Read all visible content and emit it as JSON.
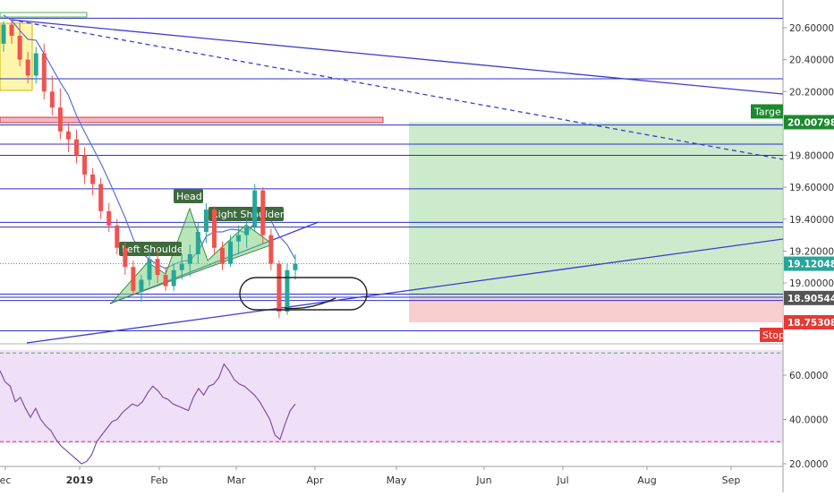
{
  "chart_data": [
    {
      "type": "candlestick",
      "title": "",
      "x_ticks": [
        "ec",
        "2019",
        "Feb",
        "Mar",
        "Apr",
        "May",
        "Jun",
        "Jul",
        "Aug",
        "Sep"
      ],
      "y_ticks": [
        "20.60000",
        "20.40000",
        "20.20000",
        "19.80000",
        "19.60000",
        "19.40000",
        "19.20000",
        "19.00000"
      ],
      "ylim": [
        18.6,
        20.7
      ],
      "grid": false,
      "price_tags": [
        {
          "value": 20.00798,
          "label": "20.00798",
          "color": "#1b8a2e"
        },
        {
          "value": 19.12048,
          "label": "19.12048",
          "color": "#26a69a"
        },
        {
          "value": 18.90544,
          "label": "18.90544",
          "color": "#555555"
        },
        {
          "value": 18.75308,
          "label": "18.75308",
          "color": "#e53935"
        }
      ],
      "position_labels": {
        "target": "Targe",
        "stop": "Stop"
      },
      "pattern_labels": {
        "left_shoulder": "Left Shoulde",
        "head": "Head",
        "right_shoulder": "Right Shoulder"
      },
      "horizontal_levels": [
        20.66,
        20.28,
        19.99,
        19.87,
        19.8,
        19.59,
        19.38,
        19.35,
        18.93,
        18.91,
        18.89,
        18.7
      ],
      "position": {
        "entry": 18.905,
        "target": 20.008,
        "stop": 18.753
      },
      "candles": [
        {
          "o": 20.5,
          "h": 20.64,
          "l": 20.45,
          "c": 20.62
        },
        {
          "o": 20.62,
          "h": 20.66,
          "l": 20.5,
          "c": 20.55
        },
        {
          "o": 20.55,
          "h": 20.63,
          "l": 20.36,
          "c": 20.4
        },
        {
          "o": 20.4,
          "h": 20.45,
          "l": 20.25,
          "c": 20.3
        },
        {
          "o": 20.3,
          "h": 20.48,
          "l": 20.25,
          "c": 20.44
        },
        {
          "o": 20.44,
          "h": 20.5,
          "l": 20.15,
          "c": 20.2
        },
        {
          "o": 20.2,
          "h": 20.3,
          "l": 20.05,
          "c": 20.1
        },
        {
          "o": 20.1,
          "h": 20.22,
          "l": 19.9,
          "c": 19.95
        },
        {
          "o": 19.95,
          "h": 20.0,
          "l": 19.82,
          "c": 19.9
        },
        {
          "o": 19.9,
          "h": 19.96,
          "l": 19.75,
          "c": 19.8
        },
        {
          "o": 19.8,
          "h": 19.85,
          "l": 19.62,
          "c": 19.68
        },
        {
          "o": 19.68,
          "h": 19.72,
          "l": 19.55,
          "c": 19.62
        },
        {
          "o": 19.62,
          "h": 19.66,
          "l": 19.4,
          "c": 19.45
        },
        {
          "o": 19.45,
          "h": 19.5,
          "l": 19.32,
          "c": 19.36
        },
        {
          "o": 19.36,
          "h": 19.4,
          "l": 19.18,
          "c": 19.22
        },
        {
          "o": 19.22,
          "h": 19.26,
          "l": 19.05,
          "c": 19.1
        },
        {
          "o": 19.1,
          "h": 19.14,
          "l": 18.92,
          "c": 18.95
        },
        {
          "o": 18.95,
          "h": 19.05,
          "l": 18.88,
          "c": 19.02
        },
        {
          "o": 19.02,
          "h": 19.2,
          "l": 18.98,
          "c": 19.15
        },
        {
          "o": 19.15,
          "h": 19.22,
          "l": 19.0,
          "c": 19.05
        },
        {
          "o": 19.05,
          "h": 19.1,
          "l": 18.95,
          "c": 18.98
        },
        {
          "o": 18.98,
          "h": 19.12,
          "l": 18.95,
          "c": 19.08
        },
        {
          "o": 19.08,
          "h": 19.18,
          "l": 19.02,
          "c": 19.12
        },
        {
          "o": 19.12,
          "h": 19.24,
          "l": 19.04,
          "c": 19.18
        },
        {
          "o": 19.18,
          "h": 19.38,
          "l": 19.12,
          "c": 19.32
        },
        {
          "o": 19.32,
          "h": 19.5,
          "l": 19.25,
          "c": 19.46
        },
        {
          "o": 19.46,
          "h": 19.48,
          "l": 19.18,
          "c": 19.22
        },
        {
          "o": 19.22,
          "h": 19.26,
          "l": 19.08,
          "c": 19.12
        },
        {
          "o": 19.12,
          "h": 19.3,
          "l": 19.1,
          "c": 19.26
        },
        {
          "o": 19.26,
          "h": 19.36,
          "l": 19.18,
          "c": 19.3
        },
        {
          "o": 19.3,
          "h": 19.4,
          "l": 19.22,
          "c": 19.35
        },
        {
          "o": 19.35,
          "h": 19.62,
          "l": 19.32,
          "c": 19.58
        },
        {
          "o": 19.58,
          "h": 19.6,
          "l": 19.25,
          "c": 19.3
        },
        {
          "o": 19.3,
          "h": 19.34,
          "l": 19.08,
          "c": 19.12
        },
        {
          "o": 19.12,
          "h": 19.14,
          "l": 18.78,
          "c": 18.82
        },
        {
          "o": 18.82,
          "h": 19.12,
          "l": 18.8,
          "c": 19.08
        },
        {
          "o": 19.08,
          "h": 19.18,
          "l": 19.02,
          "c": 19.12
        }
      ]
    },
    {
      "type": "line",
      "title": "",
      "y_ticks": [
        "60.0000",
        "40.0000",
        "20.0000"
      ],
      "ylim": [
        19,
        72
      ],
      "levels": [
        70,
        30
      ],
      "values": [
        62,
        57,
        55,
        48,
        50,
        45,
        41,
        45,
        40,
        37,
        35,
        31,
        28,
        26,
        24,
        22,
        20,
        21,
        24,
        30,
        33,
        36,
        39,
        40,
        43,
        45,
        47,
        46,
        48,
        52,
        55,
        53,
        50,
        49,
        47,
        46,
        45,
        44,
        50,
        54,
        51,
        55,
        56,
        59,
        65,
        62,
        58,
        56,
        55,
        53,
        51,
        48,
        44,
        40,
        33,
        31,
        38,
        44,
        47
      ]
    }
  ]
}
